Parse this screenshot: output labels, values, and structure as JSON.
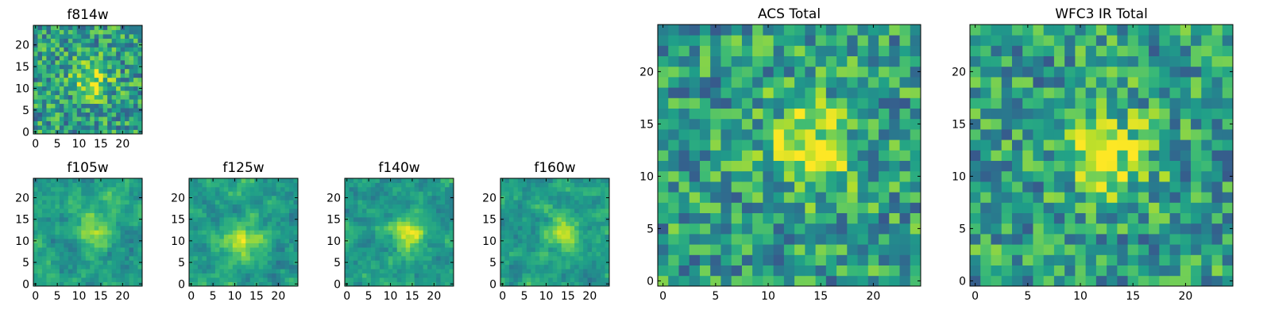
{
  "chart_data": [
    {
      "type": "heatmap",
      "title": "f814w",
      "colormap": "viridis",
      "x_range": [
        0,
        24
      ],
      "y_range": [
        0,
        24
      ],
      "xticks": [
        0,
        5,
        10,
        15,
        20
      ],
      "yticks": [
        0,
        5,
        10,
        15,
        20
      ],
      "grid": false,
      "source_center": [
        13,
        12
      ]
    },
    {
      "type": "heatmap",
      "title": "f105w",
      "colormap": "viridis",
      "x_range": [
        0,
        24
      ],
      "y_range": [
        0,
        24
      ],
      "xticks": [
        0,
        5,
        10,
        15,
        20
      ],
      "yticks": [
        0,
        5,
        10,
        15,
        20
      ],
      "grid": false,
      "source_center": [
        13,
        12
      ]
    },
    {
      "type": "heatmap",
      "title": "f125w",
      "colormap": "viridis",
      "x_range": [
        0,
        24
      ],
      "y_range": [
        0,
        24
      ],
      "xticks": [
        0,
        5,
        10,
        15,
        20
      ],
      "yticks": [
        0,
        5,
        10,
        15,
        20
      ],
      "grid": false,
      "source_center": [
        12,
        10
      ]
    },
    {
      "type": "heatmap",
      "title": "f140w",
      "colormap": "viridis",
      "x_range": [
        0,
        24
      ],
      "y_range": [
        0,
        24
      ],
      "xticks": [
        0,
        5,
        10,
        15,
        20
      ],
      "yticks": [
        0,
        5,
        10,
        15,
        20
      ],
      "grid": false,
      "source_center": [
        14,
        12
      ]
    },
    {
      "type": "heatmap",
      "title": "f160w",
      "colormap": "viridis",
      "x_range": [
        0,
        24
      ],
      "y_range": [
        0,
        24
      ],
      "xticks": [
        0,
        5,
        10,
        15,
        20
      ],
      "yticks": [
        0,
        5,
        10,
        15,
        20
      ],
      "grid": false,
      "source_center": [
        14,
        12
      ]
    },
    {
      "type": "heatmap",
      "title": "ACS Total",
      "colormap": "viridis",
      "x_range": [
        0,
        24
      ],
      "y_range": [
        0,
        24
      ],
      "xticks": [
        0,
        5,
        10,
        15,
        20
      ],
      "yticks": [
        0,
        5,
        10,
        15,
        20
      ],
      "grid": false,
      "source_center": [
        14,
        13
      ]
    },
    {
      "type": "heatmap",
      "title": "WFC3 IR Total",
      "colormap": "viridis",
      "x_range": [
        0,
        24
      ],
      "y_range": [
        0,
        24
      ],
      "xticks": [
        0,
        5,
        10,
        15,
        20
      ],
      "yticks": [
        0,
        5,
        10,
        15,
        20
      ],
      "grid": false,
      "source_center": [
        13,
        12
      ]
    }
  ]
}
